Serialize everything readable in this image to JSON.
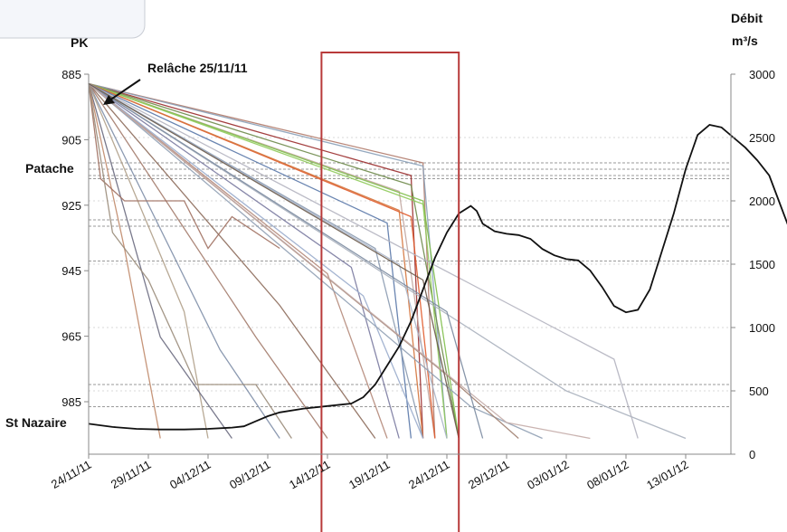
{
  "chart_data": {
    "type": "line",
    "title": "",
    "y_left": {
      "label": "PK",
      "ticks": [
        885,
        905,
        925,
        945,
        965,
        985
      ],
      "range": [
        880,
        1000
      ],
      "inverted": true
    },
    "y_right": {
      "label_line1": "Débit",
      "label_line2": "m³/s",
      "ticks": [
        0,
        500,
        1000,
        1500,
        2000,
        2500,
        3000
      ],
      "range": [
        0,
        3000
      ]
    },
    "x": {
      "tick_labels": [
        "24/11/11",
        "29/11/11",
        "04/12/11",
        "09/12/11",
        "14/12/11",
        "19/12/11",
        "24/12/11",
        "29/12/11",
        "03/01/12",
        "08/01/12",
        "13/01/12"
      ],
      "start_label_index": 0,
      "days_per_tick": 5,
      "range_days": [
        0,
        54
      ]
    },
    "annotations": [
      {
        "text": "Relâche 25/11/11"
      },
      {
        "text": "Patache",
        "pk": 914
      },
      {
        "text": "St Nazaire",
        "pk": 990
      }
    ],
    "highlight_box": {
      "from_day": 19.5,
      "to_day": 31.0,
      "color": "#b83a3a"
    },
    "reference_lines_pk": [
      913,
      915,
      917,
      918,
      931,
      933,
      944,
      983,
      990
    ],
    "discharge_series": {
      "name": "Débit",
      "color": "#111111",
      "points": [
        [
          0,
          240
        ],
        [
          2,
          215
        ],
        [
          4,
          200
        ],
        [
          6,
          195
        ],
        [
          8,
          195
        ],
        [
          10,
          200
        ],
        [
          12,
          210
        ],
        [
          13,
          220
        ],
        [
          14,
          260
        ],
        [
          15,
          300
        ],
        [
          16,
          330
        ],
        [
          18,
          360
        ],
        [
          20,
          380
        ],
        [
          22,
          400
        ],
        [
          23,
          450
        ],
        [
          24,
          550
        ],
        [
          25,
          700
        ],
        [
          26,
          850
        ],
        [
          27,
          1050
        ],
        [
          28,
          1300
        ],
        [
          29,
          1550
        ],
        [
          30,
          1750
        ],
        [
          31,
          1900
        ],
        [
          32,
          1960
        ],
        [
          32.5,
          1920
        ],
        [
          33,
          1820
        ],
        [
          34,
          1760
        ],
        [
          35,
          1740
        ],
        [
          36,
          1730
        ],
        [
          37,
          1700
        ],
        [
          38,
          1620
        ],
        [
          39,
          1570
        ],
        [
          40,
          1540
        ],
        [
          41,
          1530
        ],
        [
          42,
          1450
        ],
        [
          43,
          1320
        ],
        [
          44,
          1170
        ],
        [
          45,
          1120
        ],
        [
          46,
          1140
        ],
        [
          47,
          1300
        ],
        [
          48,
          1600
        ],
        [
          49,
          1900
        ],
        [
          50,
          2250
        ],
        [
          51,
          2520
        ],
        [
          52,
          2600
        ],
        [
          53,
          2580
        ],
        [
          54,
          2500
        ],
        [
          55,
          2420
        ],
        [
          56,
          2320
        ],
        [
          57,
          2200
        ],
        [
          58,
          1950
        ],
        [
          59,
          1700
        ],
        [
          60,
          1500
        ],
        [
          61,
          1400
        ]
      ]
    },
    "trajectories": [
      {
        "color": "#9a2b2b",
        "points": [
          [
            0,
            888
          ],
          [
            27,
            917
          ],
          [
            28,
            1000
          ]
        ]
      },
      {
        "color": "#b07a6a",
        "points": [
          [
            0,
            888
          ],
          [
            28,
            913
          ],
          [
            29,
            1000
          ]
        ]
      },
      {
        "color": "#8aa0b8",
        "points": [
          [
            0,
            888
          ],
          [
            28,
            914
          ],
          [
            30,
            1000
          ]
        ]
      },
      {
        "color": "#6e8a4a",
        "points": [
          [
            0,
            888
          ],
          [
            27,
            920
          ],
          [
            31,
            1000
          ]
        ]
      },
      {
        "color": "#c2a6a0",
        "points": [
          [
            0,
            888
          ],
          [
            26,
            922
          ],
          [
            29,
            1000
          ]
        ]
      },
      {
        "color": "#7fbf4a",
        "points": [
          [
            0,
            888
          ],
          [
            28,
            925
          ],
          [
            31,
            1000
          ]
        ]
      },
      {
        "color": "#8fca5a",
        "points": [
          [
            0,
            888
          ],
          [
            28,
            926
          ],
          [
            30,
            1000
          ]
        ]
      },
      {
        "color": "#e05a2a",
        "points": [
          [
            0,
            888
          ],
          [
            27,
            930
          ],
          [
            29,
            1000
          ]
        ]
      },
      {
        "color": "#d4733b",
        "points": [
          [
            0,
            888
          ],
          [
            26,
            928
          ],
          [
            28,
            1000
          ]
        ]
      },
      {
        "color": "#5a78a8",
        "points": [
          [
            0,
            888
          ],
          [
            25,
            932
          ],
          [
            27,
            1000
          ]
        ]
      },
      {
        "color": "#8a9ab0",
        "points": [
          [
            0,
            888
          ],
          [
            24,
            940
          ],
          [
            28,
            1000
          ]
        ]
      },
      {
        "color": "#a8b4c8",
        "points": [
          [
            0,
            888
          ],
          [
            26,
            945
          ],
          [
            30,
            1000
          ]
        ]
      },
      {
        "color": "#7a7aa0",
        "points": [
          [
            0,
            888
          ],
          [
            22,
            946
          ],
          [
            26,
            1000
          ]
        ]
      },
      {
        "color": "#b58a7a",
        "points": [
          [
            0,
            888
          ],
          [
            20,
            948
          ],
          [
            25,
            1000
          ]
        ]
      },
      {
        "color": "#9aaccc",
        "points": [
          [
            0,
            888
          ],
          [
            23,
            955
          ],
          [
            28,
            1000
          ]
        ]
      },
      {
        "color": "#8c6a5a",
        "points": [
          [
            0,
            888
          ],
          [
            16,
            958
          ],
          [
            24,
            1000
          ]
        ]
      },
      {
        "color": "#a37b6b",
        "points": [
          [
            0,
            888
          ],
          [
            14,
            968
          ],
          [
            20,
            1000
          ]
        ]
      },
      {
        "color": "#7f8fa8",
        "points": [
          [
            0,
            888
          ],
          [
            11,
            972
          ],
          [
            16,
            1000
          ]
        ]
      },
      {
        "color": "#b0a08a",
        "points": [
          [
            0,
            888
          ],
          [
            8,
            960
          ],
          [
            10,
            1000
          ]
        ]
      },
      {
        "color": "#6a6a80",
        "points": [
          [
            0,
            888
          ],
          [
            6,
            968
          ],
          [
            12,
            1000
          ]
        ]
      },
      {
        "color": "#c08a6a",
        "points": [
          [
            0,
            888
          ],
          [
            3,
            940
          ],
          [
            6,
            1000
          ]
        ]
      },
      {
        "color": "#a07060",
        "points": [
          [
            0,
            888
          ],
          [
            1,
            918
          ],
          [
            3,
            925
          ],
          [
            8,
            925
          ],
          [
            10,
            940
          ],
          [
            12,
            930
          ],
          [
            16,
            940
          ]
        ]
      },
      {
        "color": "#9a8c7a",
        "points": [
          [
            0,
            888
          ],
          [
            2,
            935
          ],
          [
            5,
            950
          ],
          [
            9,
            983
          ],
          [
            14,
            983
          ],
          [
            17,
            1000
          ]
        ]
      },
      {
        "color": "#a8b0bc",
        "points": [
          [
            0,
            888
          ],
          [
            40,
            985
          ],
          [
            50,
            1000
          ]
        ]
      },
      {
        "color": "#b4b4c0",
        "points": [
          [
            0,
            888
          ],
          [
            44,
            975
          ],
          [
            46,
            1000
          ]
        ]
      },
      {
        "color": "#90a0b4",
        "points": [
          [
            0,
            888
          ],
          [
            32,
            990
          ],
          [
            38,
            1000
          ]
        ]
      },
      {
        "color": "#a08070",
        "points": [
          [
            0,
            888
          ],
          [
            30,
            980
          ],
          [
            36,
            1000
          ]
        ]
      },
      {
        "color": "#c4aca8",
        "points": [
          [
            0,
            888
          ],
          [
            35,
            995
          ],
          [
            42,
            1000
          ]
        ]
      },
      {
        "color": "#7a8aa0",
        "points": [
          [
            0,
            888
          ],
          [
            30,
            960
          ],
          [
            33,
            1000
          ]
        ]
      },
      {
        "color": "#6a5a4a",
        "points": [
          [
            0,
            888
          ],
          [
            28,
            950
          ],
          [
            31,
            1000
          ]
        ]
      }
    ]
  }
}
